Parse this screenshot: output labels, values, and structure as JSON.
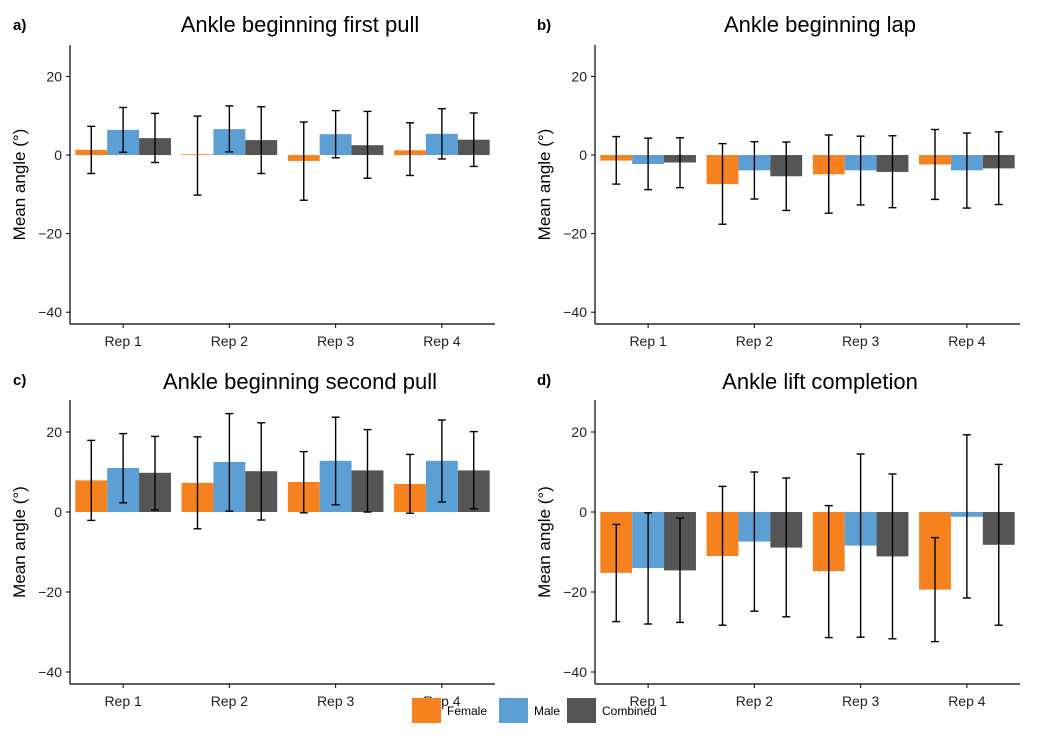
{
  "colors": {
    "Female": "#f6821f",
    "Male": "#5b9fd4",
    "Combined": "#555555",
    "errorbar": "#000000"
  },
  "legend": {
    "items": [
      "Female",
      "Male",
      "Combined"
    ],
    "placement": "bottom-center"
  },
  "chart_data": [
    {
      "panel_label": "a)",
      "type": "bar",
      "title": "Ankle beginning first pull",
      "ylabel": "Mean angle (°)",
      "ylim": [
        -43,
        28
      ],
      "yticks": [
        20,
        0,
        -20,
        -40
      ],
      "categories": [
        "Rep 1",
        "Rep 2",
        "Rep 3",
        "Rep 4"
      ],
      "series": [
        {
          "name": "Female",
          "values": [
            1.3,
            0.2,
            -1.5,
            1.2
          ],
          "err_low": [
            -4.7,
            -10.2,
            -11.5,
            -5.2
          ],
          "err_high": [
            7.3,
            9.9,
            8.4,
            8.2
          ]
        },
        {
          "name": "Male",
          "values": [
            6.4,
            6.6,
            5.3,
            5.4
          ],
          "err_low": [
            0.7,
            0.8,
            -0.7,
            -1.0
          ],
          "err_high": [
            12.1,
            12.5,
            11.3,
            11.8
          ]
        },
        {
          "name": "Combined",
          "values": [
            4.3,
            3.8,
            2.5,
            3.9
          ],
          "err_low": [
            -1.9,
            -4.7,
            -5.9,
            -2.9
          ],
          "err_high": [
            10.6,
            12.3,
            11.1,
            10.7
          ]
        }
      ]
    },
    {
      "panel_label": "b)",
      "type": "bar",
      "title": "Ankle beginning lap",
      "ylabel": "Mean angle (°)",
      "ylim": [
        -43,
        28
      ],
      "yticks": [
        20,
        0,
        -20,
        -40
      ],
      "categories": [
        "Rep 1",
        "Rep 2",
        "Rep 3",
        "Rep 4"
      ],
      "series": [
        {
          "name": "Female",
          "values": [
            -1.4,
            -7.4,
            -4.9,
            -2.4
          ],
          "err_low": [
            -7.4,
            -17.6,
            -14.8,
            -11.3
          ],
          "err_high": [
            4.7,
            2.9,
            5.1,
            6.5
          ]
        },
        {
          "name": "Male",
          "values": [
            -2.3,
            -3.9,
            -3.9,
            -3.9
          ],
          "err_low": [
            -8.8,
            -11.2,
            -12.7,
            -13.5
          ],
          "err_high": [
            4.3,
            3.4,
            4.8,
            5.6
          ]
        },
        {
          "name": "Combined",
          "values": [
            -1.9,
            -5.4,
            -4.3,
            -3.4
          ],
          "err_low": [
            -8.3,
            -14.1,
            -13.4,
            -12.6
          ],
          "err_high": [
            4.4,
            3.3,
            4.9,
            5.9
          ]
        }
      ]
    },
    {
      "panel_label": "c)",
      "type": "bar",
      "title": "Ankle beginning second pull",
      "ylabel": "Mean angle (°)",
      "ylim": [
        -43,
        28
      ],
      "yticks": [
        20,
        0,
        -20,
        -40
      ],
      "categories": [
        "Rep 1",
        "Rep 2",
        "Rep 3",
        "Rep 4"
      ],
      "series": [
        {
          "name": "Female",
          "values": [
            7.9,
            7.3,
            7.5,
            7.0
          ],
          "err_low": [
            -2.1,
            -4.2,
            -0.2,
            -0.3
          ],
          "err_high": [
            17.9,
            18.8,
            15.1,
            14.4
          ]
        },
        {
          "name": "Male",
          "values": [
            11.0,
            12.5,
            12.8,
            12.8
          ],
          "err_low": [
            2.3,
            0.2,
            1.8,
            2.5
          ],
          "err_high": [
            19.6,
            24.6,
            23.7,
            23.0
          ]
        },
        {
          "name": "Combined",
          "values": [
            9.8,
            10.2,
            10.4,
            10.4
          ],
          "err_low": [
            0.5,
            -2.0,
            0.0,
            0.8
          ],
          "err_high": [
            18.9,
            22.3,
            20.6,
            20.1
          ]
        }
      ]
    },
    {
      "panel_label": "d)",
      "type": "bar",
      "title": "Ankle lift completion",
      "ylabel": "Mean angle (°)",
      "ylim": [
        -43,
        28
      ],
      "yticks": [
        20,
        0,
        -20,
        -40
      ],
      "categories": [
        "Rep 1",
        "Rep 2",
        "Rep 3",
        "Rep 4"
      ],
      "series": [
        {
          "name": "Female",
          "values": [
            -15.2,
            -11.0,
            -14.8,
            -19.4
          ],
          "err_low": [
            -27.4,
            -28.3,
            -31.4,
            -32.4
          ],
          "err_high": [
            -3.1,
            6.4,
            1.6,
            -6.4
          ]
        },
        {
          "name": "Male",
          "values": [
            -14.0,
            -7.4,
            -8.4,
            -1.2
          ],
          "err_low": [
            -28.0,
            -24.8,
            -31.3,
            -21.5
          ],
          "err_high": [
            -0.2,
            10.0,
            14.5,
            19.3
          ]
        },
        {
          "name": "Combined",
          "values": [
            -14.6,
            -8.9,
            -11.1,
            -8.2
          ],
          "err_low": [
            -27.6,
            -26.2,
            -31.7,
            -28.3
          ],
          "err_high": [
            -1.5,
            8.5,
            9.5,
            11.9
          ]
        }
      ]
    }
  ]
}
